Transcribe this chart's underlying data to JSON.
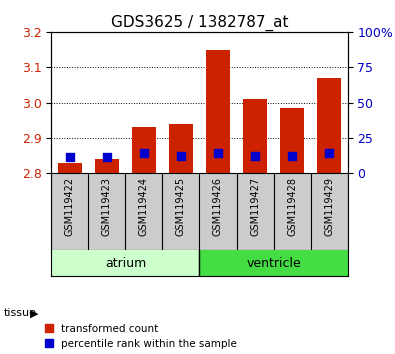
{
  "title": "GDS3625 / 1382787_at",
  "samples": [
    "GSM119422",
    "GSM119423",
    "GSM119424",
    "GSM119425",
    "GSM119426",
    "GSM119427",
    "GSM119428",
    "GSM119429"
  ],
  "red_values": [
    2.83,
    2.84,
    2.93,
    2.94,
    3.15,
    3.01,
    2.985,
    3.07
  ],
  "blue_values": [
    2.845,
    2.847,
    2.857,
    2.848,
    2.856,
    2.848,
    2.848,
    2.856
  ],
  "bar_bottom": 2.8,
  "ylim_left": [
    2.8,
    3.2
  ],
  "yticks_left": [
    2.8,
    2.9,
    3.0,
    3.1,
    3.2
  ],
  "ylim_right": [
    0,
    100
  ],
  "yticks_right": [
    0,
    25,
    50,
    75,
    100
  ],
  "yticklabels_right": [
    "0",
    "25",
    "50",
    "75",
    "100%"
  ],
  "red_color": "#cc2200",
  "blue_color": "#0000cc",
  "atrium_color": "#ccffcc",
  "ventricle_color": "#44dd44",
  "bar_width": 0.65,
  "grid_color": "black",
  "tick_label_color_left": "#cc2200",
  "tick_label_color_right": "#0000cc",
  "legend_items": [
    "transformed count",
    "percentile rank within the sample"
  ],
  "tissue_label": "tissue",
  "blue_marker_size": 35,
  "xticklabel_fontsize": 7,
  "yticklabel_fontsize": 9,
  "title_fontsize": 11,
  "gray_bg": "#cccccc"
}
